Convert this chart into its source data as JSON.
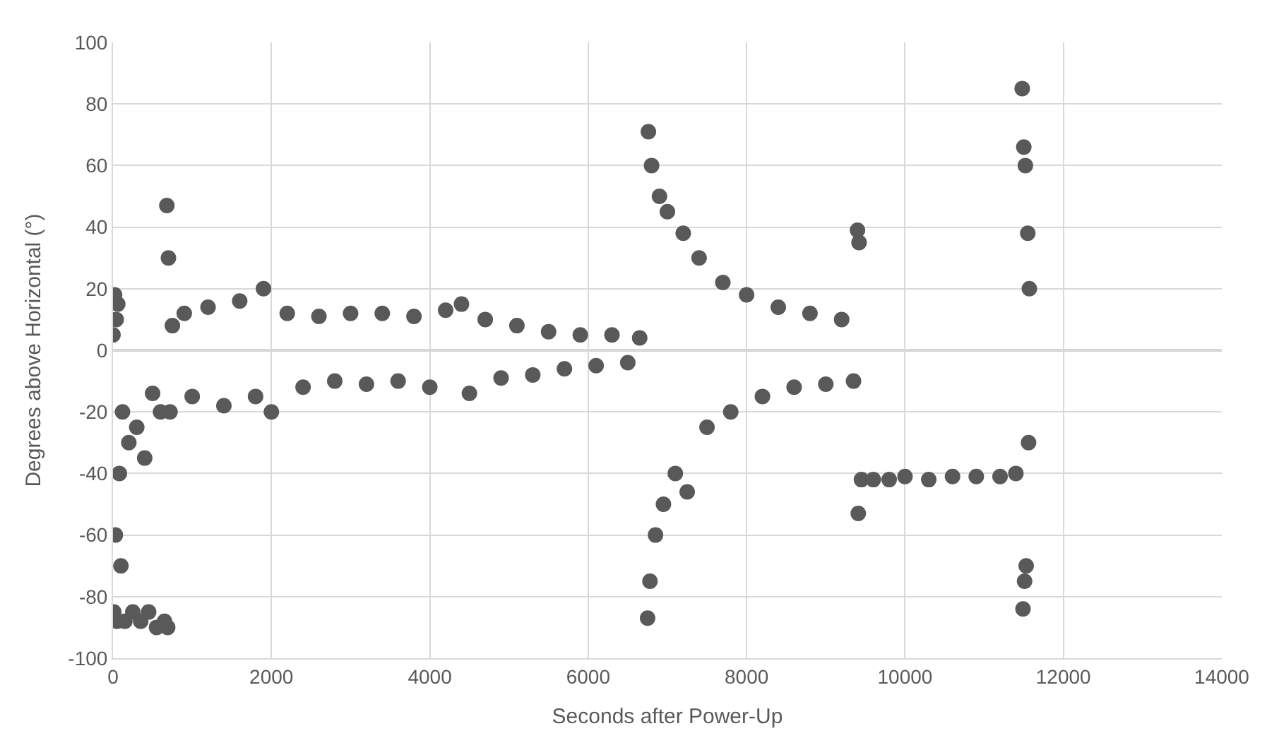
{
  "chart_data": {
    "type": "scatter",
    "xlabel": "Seconds after Power-Up",
    "ylabel": "Degrees above Horizontal (°)",
    "xlim": [
      0,
      14000
    ],
    "xticks": [
      0,
      2000,
      4000,
      6000,
      8000,
      10000,
      12000,
      14000
    ],
    "ylim": [
      -100,
      100
    ],
    "yticks": [
      -100,
      -80,
      -60,
      -40,
      -20,
      0,
      20,
      40,
      60,
      80,
      100
    ],
    "grid": true,
    "marker": "circle",
    "series": [
      {
        "color": "#595959",
        "x": [
          0,
          10,
          20,
          30,
          40,
          50,
          60,
          80,
          100,
          120,
          150,
          200,
          250,
          300,
          350,
          400,
          450,
          500,
          550,
          600,
          650,
          680,
          690,
          700,
          720,
          750,
          900,
          1000,
          1200,
          1400,
          1600,
          1800,
          1900,
          2000,
          2200,
          2400,
          2600,
          2800,
          3000,
          3200,
          3400,
          3600,
          3800,
          4000,
          4200,
          4400,
          4500,
          4700,
          4900,
          5100,
          5300,
          5500,
          5700,
          5900,
          6100,
          6300,
          6500,
          6650,
          6750,
          6760,
          6780,
          6800,
          6850,
          6900,
          6950,
          7000,
          7100,
          7200,
          7250,
          7400,
          7500,
          7700,
          7800,
          8000,
          8200,
          8400,
          8600,
          8800,
          9000,
          9200,
          9350,
          9400,
          9410,
          9420,
          9450,
          9600,
          9800,
          10000,
          10300,
          10600,
          10900,
          11200,
          11400,
          11480,
          11490,
          11500,
          11510,
          11520,
          11530,
          11550,
          11560,
          11570
        ],
        "values": [
          5,
          -85,
          18,
          -60,
          10,
          -88,
          15,
          -40,
          -70,
          -20,
          -88,
          -30,
          -85,
          -25,
          -88,
          -35,
          -85,
          -14,
          -90,
          -20,
          -88,
          47,
          -90,
          30,
          -20,
          8,
          12,
          -15,
          14,
          -18,
          16,
          -15,
          20,
          -20,
          12,
          -12,
          11,
          -10,
          12,
          -11,
          12,
          -10,
          11,
          -12,
          13,
          15,
          -14,
          10,
          -9,
          8,
          -8,
          6,
          -6,
          5,
          -5,
          5,
          -4,
          4,
          -87,
          71,
          -75,
          60,
          -60,
          50,
          -50,
          45,
          -40,
          38,
          -46,
          30,
          -25,
          22,
          -20,
          18,
          -15,
          14,
          -12,
          12,
          -11,
          10,
          -10,
          39,
          -53,
          35,
          -42,
          -42,
          -42,
          -41,
          -42,
          -41,
          -41,
          -41,
          -40,
          85,
          -84,
          66,
          -75,
          60,
          -70,
          38,
          -30,
          20
        ]
      }
    ]
  }
}
